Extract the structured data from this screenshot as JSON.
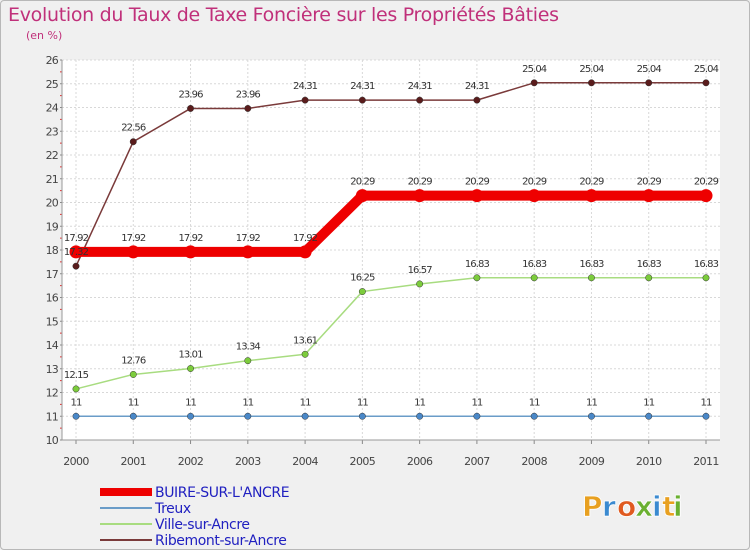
{
  "page": {
    "title": "Evolution du Taux de Taxe Foncière sur les Propriétés Bâties",
    "subtitle": "(en %)"
  },
  "logo": {
    "letters": [
      "P",
      "r",
      "o",
      "x",
      "i",
      "t",
      "i"
    ],
    "colors": [
      "#e8a020",
      "#3a8ad0",
      "#e05a20",
      "#6ab030",
      "#3a8ad0",
      "#e8a020",
      "#6ab030"
    ]
  },
  "chart_data": {
    "type": "line",
    "title": "Evolution du Taux de Taxe Foncière sur les Propriétés Bâties",
    "ylabel": "(en %)",
    "xlabel": "",
    "x": [
      "2000",
      "2001",
      "2002",
      "2003",
      "2004",
      "2005",
      "2006",
      "2007",
      "2008",
      "2009",
      "2010",
      "2011"
    ],
    "ylim": [
      10,
      26
    ],
    "yticks": [
      10,
      11,
      12,
      13,
      14,
      15,
      16,
      17,
      18,
      19,
      20,
      21,
      22,
      23,
      24,
      25,
      26
    ],
    "grid": true,
    "legend_position": "bottom-left",
    "series": [
      {
        "name": "BUIRE-SUR-L'ANCRE",
        "color": "#ee0000",
        "emphasis": true,
        "values": [
          17.92,
          17.92,
          17.92,
          17.92,
          17.92,
          20.29,
          20.29,
          20.29,
          20.29,
          20.29,
          20.29,
          20.29
        ],
        "labels": [
          "17.92",
          "17.92",
          "17.92",
          "17.92",
          "17.92",
          "20.29",
          "20.29",
          "20.29",
          "20.29",
          "20.29",
          "20.29",
          "20.29"
        ]
      },
      {
        "name": "Treux",
        "color": "#6a9cc8",
        "point_color": "#4a88c8",
        "emphasis": false,
        "values": [
          11,
          11,
          11,
          11,
          11,
          11,
          11,
          11,
          11,
          11,
          11,
          11
        ],
        "labels": [
          "11",
          "11",
          "11",
          "11",
          "11",
          "11",
          "11",
          "11",
          "11",
          "11",
          "11",
          "11"
        ]
      },
      {
        "name": "Ville-sur-Ancre",
        "color": "#a8dc80",
        "point_color": "#7ccc3c",
        "emphasis": false,
        "values": [
          12.15,
          12.76,
          13.01,
          13.34,
          13.61,
          16.25,
          16.57,
          16.83,
          16.83,
          16.83,
          16.83,
          16.83
        ],
        "labels": [
          "12.15",
          "12.76",
          "13.01",
          "13.34",
          "13.61",
          "16.25",
          "16.57",
          "16.83",
          "16.83",
          "16.83",
          "16.83",
          "16.83"
        ]
      },
      {
        "name": "Ribemont-sur-Ancre",
        "color": "#7a3a3a",
        "point_color": "#5a1c1c",
        "emphasis": false,
        "values": [
          17.32,
          22.56,
          23.96,
          23.96,
          24.31,
          24.31,
          24.31,
          24.31,
          25.04,
          25.04,
          25.04,
          25.04
        ],
        "labels": [
          "17.32",
          "22.56",
          "23.96",
          "23.96",
          "24.31",
          "24.31",
          "24.31",
          "24.31",
          "25.04",
          "25.04",
          "25.04",
          "25.04"
        ]
      }
    ]
  }
}
